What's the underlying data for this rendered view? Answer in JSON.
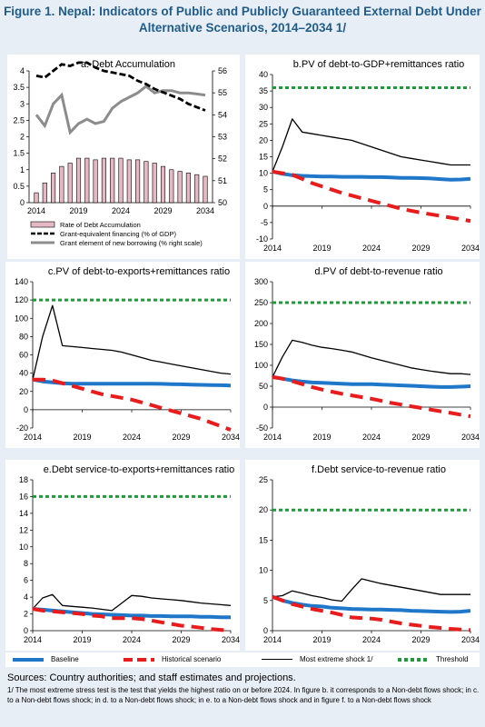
{
  "figure": {
    "title_line1": "Figure 1. Nepal: Indicators of Public and Publicly Guaranteed External Debt Under",
    "title_line2": "Alternative Scenarios, 2014–2034 1/"
  },
  "colors": {
    "baseline": "#1f77c9",
    "historical": "#e81c1c",
    "extreme": "#000000",
    "threshold": "#1e9a38",
    "bar_fill": "#e6b8c4",
    "grant_equiv": "#000000",
    "grant_element": "#8c8c8c"
  },
  "legend": {
    "baseline": "Baseline",
    "historical": "Historical scenario",
    "extreme": "Most extreme shock  1/",
    "threshold": "Threshold"
  },
  "notes": {
    "sources": "Sources: Country authorities; and staff estimates and projections.",
    "footnote": "1/ The most extreme stress test is the test that yields the highest ratio on or before 2024. In figure b. it corresponds to a Non-debt flows shock; in c. to a Non-debt flows shock; in d. to a Non-debt flows shock; in e. to a Non-debt flows shock and  in figure f. to a Non-debt flows shock"
  },
  "chart_data": [
    {
      "id": "a",
      "type": "bar",
      "title": "a. Debt Accumulation",
      "x": [
        2014,
        2015,
        2016,
        2017,
        2018,
        2019,
        2020,
        2021,
        2022,
        2023,
        2024,
        2025,
        2026,
        2027,
        2028,
        2029,
        2030,
        2031,
        2032,
        2033,
        2034
      ],
      "xticks": [
        2014,
        2019,
        2024,
        2029,
        2034
      ],
      "ylim": [
        0,
        4
      ],
      "yticks": [
        0,
        0.5,
        1,
        1.5,
        2,
        2.5,
        3,
        3.5,
        4
      ],
      "y2lim": [
        50,
        56
      ],
      "y2ticks": [
        50,
        51,
        52,
        53,
        54,
        55,
        56
      ],
      "series": [
        {
          "name": "Rate of Debt Accumulation",
          "kind": "bar",
          "axis": "left",
          "values": [
            0.3,
            0.6,
            0.9,
            1.1,
            1.2,
            1.35,
            1.35,
            1.3,
            1.35,
            1.35,
            1.35,
            1.3,
            1.3,
            1.25,
            1.2,
            1.1,
            1.0,
            0.95,
            0.9,
            0.85,
            0.8
          ]
        },
        {
          "name": "Grant-equivalent financing (% of GDP)",
          "kind": "dashed",
          "axis": "left",
          "values": [
            3.85,
            3.8,
            4.0,
            4.2,
            4.15,
            4.25,
            4.25,
            4.1,
            4.0,
            3.95,
            3.9,
            3.85,
            3.7,
            3.6,
            3.45,
            3.35,
            3.25,
            3.15,
            3.0,
            2.9,
            2.8
          ]
        },
        {
          "name": "Grant element of new borrowing (% right scale)",
          "kind": "solid",
          "axis": "right",
          "values": [
            54.0,
            53.5,
            54.5,
            54.9,
            53.2,
            53.6,
            53.8,
            53.6,
            53.7,
            54.3,
            54.6,
            54.8,
            55.0,
            55.3,
            55.0,
            55.1,
            55.1,
            55.0,
            55.0,
            54.95,
            54.9
          ]
        }
      ]
    },
    {
      "id": "b",
      "type": "line",
      "title": "b.PV of debt-to-GDP+remittances ratio",
      "x": [
        2014,
        2015,
        2016,
        2017,
        2018,
        2019,
        2020,
        2021,
        2022,
        2023,
        2024,
        2025,
        2026,
        2027,
        2028,
        2029,
        2030,
        2031,
        2032,
        2033,
        2034
      ],
      "xticks": [
        2014,
        2019,
        2024,
        2029,
        2034
      ],
      "ylim": [
        -10,
        40
      ],
      "yticks": [
        -10,
        -5,
        0,
        5,
        10,
        15,
        20,
        25,
        30,
        35,
        40
      ],
      "series": [
        {
          "name": "Baseline",
          "values": [
            10.5,
            9.8,
            9.4,
            9.2,
            9.1,
            9.0,
            9.0,
            8.9,
            8.9,
            8.9,
            8.8,
            8.8,
            8.7,
            8.6,
            8.6,
            8.5,
            8.4,
            8.2,
            8.0,
            8.1,
            8.3
          ]
        },
        {
          "name": "Historical scenario",
          "values": [
            10.5,
            10.0,
            9.5,
            8.3,
            7.0,
            6.0,
            5.0,
            4.0,
            3.2,
            2.4,
            1.6,
            0.8,
            0.0,
            -0.8,
            -1.4,
            -2.0,
            -2.5,
            -3.0,
            -3.5,
            -4.0,
            -4.5
          ]
        },
        {
          "name": "Most extreme shock  1/",
          "values": [
            10.5,
            18.0,
            26.5,
            22.5,
            22.0,
            21.5,
            21.0,
            20.5,
            20.0,
            19.0,
            18.0,
            17.0,
            16.0,
            15.0,
            14.5,
            14.0,
            13.5,
            13.0,
            12.5,
            12.5,
            12.5
          ]
        },
        {
          "name": "Threshold",
          "values": [
            36,
            36,
            36,
            36,
            36,
            36,
            36,
            36,
            36,
            36,
            36,
            36,
            36,
            36,
            36,
            36,
            36,
            36,
            36,
            36,
            36
          ]
        }
      ]
    },
    {
      "id": "c",
      "type": "line",
      "title": "c.PV of debt-to-exports+remittances ratio",
      "x": [
        2014,
        2015,
        2016,
        2017,
        2018,
        2019,
        2020,
        2021,
        2022,
        2023,
        2024,
        2025,
        2026,
        2027,
        2028,
        2029,
        2030,
        2031,
        2032,
        2033,
        2034
      ],
      "xticks": [
        2014,
        2019,
        2024,
        2029,
        2034
      ],
      "ylim": [
        -20,
        140
      ],
      "yticks": [
        -20,
        0,
        20,
        40,
        60,
        80,
        100,
        120,
        140
      ],
      "series": [
        {
          "name": "Baseline",
          "values": [
            33,
            31,
            30,
            29,
            28.5,
            28.5,
            28.5,
            28.5,
            28.5,
            28.5,
            28.5,
            28.5,
            28.5,
            28.3,
            28.0,
            27.8,
            27.5,
            27.2,
            27.0,
            26.8,
            26.5
          ]
        },
        {
          "name": "Historical scenario",
          "values": [
            33,
            33,
            32,
            29,
            26,
            23,
            20,
            17,
            15,
            13,
            11,
            8,
            5,
            2,
            -1,
            -4,
            -7,
            -10,
            -14,
            -18,
            -22
          ]
        },
        {
          "name": "Most extreme shock  1/",
          "values": [
            33,
            80,
            114,
            70,
            69,
            68,
            67,
            66,
            65,
            63,
            60,
            57,
            54,
            52,
            50,
            48,
            46,
            44,
            42,
            40,
            39
          ]
        },
        {
          "name": "Threshold",
          "values": [
            120,
            120,
            120,
            120,
            120,
            120,
            120,
            120,
            120,
            120,
            120,
            120,
            120,
            120,
            120,
            120,
            120,
            120,
            120,
            120,
            120
          ]
        }
      ]
    },
    {
      "id": "d",
      "type": "line",
      "title": "d.PV of debt-to-revenue ratio",
      "x": [
        2014,
        2015,
        2016,
        2017,
        2018,
        2019,
        2020,
        2021,
        2022,
        2023,
        2024,
        2025,
        2026,
        2027,
        2028,
        2029,
        2030,
        2031,
        2032,
        2033,
        2034
      ],
      "xticks": [
        2014,
        2019,
        2024,
        2029,
        2034
      ],
      "ylim": [
        -50,
        300
      ],
      "yticks": [
        -50,
        0,
        50,
        100,
        150,
        200,
        250,
        300
      ],
      "series": [
        {
          "name": "Baseline",
          "values": [
            72,
            68,
            64,
            61,
            59,
            58,
            57,
            56,
            55,
            55,
            55,
            54,
            53,
            52,
            51,
            50,
            49,
            48,
            48,
            49,
            50
          ]
        },
        {
          "name": "Historical scenario",
          "values": [
            72,
            68,
            62,
            55,
            48,
            42,
            37,
            32,
            28,
            24,
            20,
            15,
            10,
            6,
            2,
            -2,
            -6,
            -10,
            -14,
            -18,
            -22
          ]
        },
        {
          "name": "Most extreme shock  1/",
          "values": [
            72,
            120,
            160,
            155,
            148,
            143,
            140,
            136,
            132,
            125,
            118,
            112,
            106,
            100,
            94,
            90,
            86,
            83,
            80,
            80,
            78
          ]
        },
        {
          "name": "Threshold",
          "values": [
            250,
            250,
            250,
            250,
            250,
            250,
            250,
            250,
            250,
            250,
            250,
            250,
            250,
            250,
            250,
            250,
            250,
            250,
            250,
            250,
            250
          ]
        }
      ]
    },
    {
      "id": "e",
      "type": "line",
      "title": "e.Debt service-to-exports+remittances ratio",
      "x": [
        2014,
        2015,
        2016,
        2017,
        2018,
        2019,
        2020,
        2021,
        2022,
        2023,
        2024,
        2025,
        2026,
        2027,
        2028,
        2029,
        2030,
        2031,
        2032,
        2033,
        2034
      ],
      "xticks": [
        2014,
        2019,
        2024,
        2029,
        2034
      ],
      "ylim": [
        0,
        18
      ],
      "yticks": [
        0,
        2,
        4,
        6,
        8,
        10,
        12,
        14,
        16,
        18
      ],
      "series": [
        {
          "name": "Baseline",
          "values": [
            2.6,
            2.5,
            2.4,
            2.3,
            2.2,
            2.1,
            2.0,
            1.95,
            1.9,
            1.85,
            1.8,
            1.8,
            1.75,
            1.75,
            1.7,
            1.7,
            1.7,
            1.65,
            1.65,
            1.6,
            1.6
          ]
        },
        {
          "name": "Historical scenario",
          "values": [
            2.6,
            2.4,
            2.3,
            2.2,
            2.1,
            2.0,
            1.8,
            1.7,
            1.5,
            1.5,
            1.5,
            1.4,
            1.2,
            1.0,
            0.8,
            0.6,
            0.5,
            0.35,
            0.2,
            0.1,
            0.0
          ]
        },
        {
          "name": "Most extreme shock  1/",
          "values": [
            2.6,
            3.9,
            4.3,
            3.0,
            2.9,
            2.8,
            2.7,
            2.55,
            2.4,
            3.3,
            4.2,
            4.1,
            3.9,
            3.8,
            3.7,
            3.6,
            3.45,
            3.3,
            3.2,
            3.1,
            3.0
          ]
        },
        {
          "name": "Threshold",
          "values": [
            16,
            16,
            16,
            16,
            16,
            16,
            16,
            16,
            16,
            16,
            16,
            16,
            16,
            16,
            16,
            16,
            16,
            16,
            16,
            16,
            16
          ]
        }
      ]
    },
    {
      "id": "f",
      "type": "line",
      "title": "f.Debt service-to-revenue ratio",
      "x": [
        2014,
        2015,
        2016,
        2017,
        2018,
        2019,
        2020,
        2021,
        2022,
        2023,
        2024,
        2025,
        2026,
        2027,
        2028,
        2029,
        2030,
        2031,
        2032,
        2033,
        2034
      ],
      "xticks": [
        2014,
        2019,
        2024,
        2029,
        2034
      ],
      "ylim": [
        0,
        25
      ],
      "yticks": [
        0,
        5,
        10,
        15,
        20,
        25
      ],
      "series": [
        {
          "name": "Baseline",
          "values": [
            5.6,
            5.0,
            4.6,
            4.3,
            4.1,
            4.0,
            3.8,
            3.7,
            3.6,
            3.55,
            3.5,
            3.5,
            3.45,
            3.4,
            3.3,
            3.25,
            3.2,
            3.15,
            3.1,
            3.15,
            3.3
          ]
        },
        {
          "name": "Historical scenario",
          "values": [
            5.6,
            5.0,
            4.4,
            4.0,
            3.6,
            3.3,
            3.0,
            2.6,
            2.2,
            2.1,
            2.0,
            1.8,
            1.5,
            1.2,
            1.0,
            0.8,
            0.6,
            0.45,
            0.3,
            0.2,
            0.1
          ]
        },
        {
          "name": "Most extreme shock  1/",
          "values": [
            5.6,
            5.8,
            6.6,
            6.2,
            5.8,
            5.5,
            5.1,
            4.9,
            6.8,
            8.6,
            8.2,
            7.8,
            7.5,
            7.2,
            6.9,
            6.6,
            6.3,
            6.0,
            6.0,
            6.0,
            6.0
          ]
        },
        {
          "name": "Threshold",
          "values": [
            20,
            20,
            20,
            20,
            20,
            20,
            20,
            20,
            20,
            20,
            20,
            20,
            20,
            20,
            20,
            20,
            20,
            20,
            20,
            20,
            20
          ]
        }
      ]
    }
  ]
}
